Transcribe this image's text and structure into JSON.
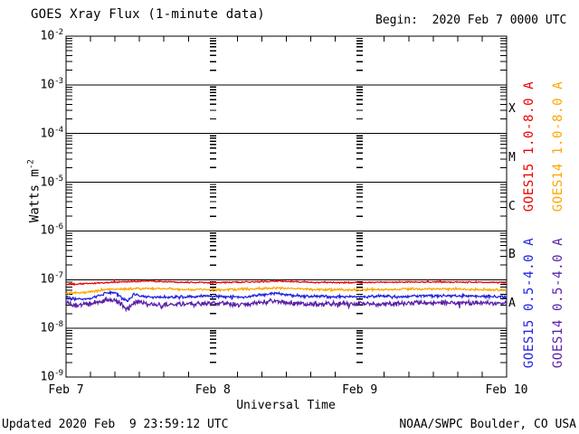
{
  "title": "GOES Xray Flux (1-minute data)",
  "begin_label": "Begin:  2020 Feb 7 0000 UTC",
  "footer": {
    "updated": "Updated 2020 Feb  9 23:59:12 UTC",
    "source": "NOAA/SWPC Boulder, CO USA"
  },
  "chart_data": {
    "type": "line",
    "title": "GOES Xray Flux (1-minute data)",
    "xlabel": "Universal Time",
    "ylabel_text": "Watts m",
    "ylabel_exp": "-2",
    "y_scale": "log10",
    "ylim_log10": [
      -9,
      -2
    ],
    "y_ticks": [
      "-2",
      "-3",
      "-4",
      "-5",
      "-6",
      "-7",
      "-8",
      "-9"
    ],
    "x_range_days": [
      0,
      3
    ],
    "x_ticks": [
      {
        "label": "Feb 7",
        "day": 0
      },
      {
        "label": "Feb 8",
        "day": 1
      },
      {
        "label": "Feb 9",
        "day": 2
      },
      {
        "label": "Feb 10",
        "day": 3
      }
    ],
    "grid": {
      "decade_lines": true,
      "day_dashed_lines_days": [
        1,
        2
      ],
      "color": "#000000"
    },
    "flare_classes": [
      {
        "label": "X",
        "log_center": -3.5
      },
      {
        "label": "M",
        "log_center": -4.5
      },
      {
        "label": "C",
        "log_center": -5.5
      },
      {
        "label": "B",
        "log_center": -6.5
      },
      {
        "label": "A",
        "log_center": -7.5
      }
    ],
    "series": [
      {
        "name": "GOES15 1.0-8.0 A",
        "color": "#ee0000",
        "noise_log10": 0.013,
        "spike_dir": 1,
        "anchors_day_log10flux": [
          [
            0,
            -7.1
          ],
          [
            0.15,
            -7.08
          ],
          [
            0.35,
            -7.05
          ],
          [
            0.55,
            -7.03
          ],
          [
            0.75,
            -7.05
          ],
          [
            1.0,
            -7.06
          ],
          [
            1.25,
            -7.05
          ],
          [
            1.45,
            -7.03
          ],
          [
            1.7,
            -7.06
          ],
          [
            2.0,
            -7.06
          ],
          [
            2.3,
            -7.05
          ],
          [
            2.6,
            -7.05
          ],
          [
            3,
            -7.06
          ]
        ]
      },
      {
        "name": "GOES14 1.0-8.0 A",
        "color": "#ffa500",
        "noise_log10": 0.022,
        "spike_dir": 1,
        "anchors_day_log10flux": [
          [
            0,
            -7.28
          ],
          [
            0.12,
            -7.27
          ],
          [
            0.3,
            -7.2
          ],
          [
            0.55,
            -7.18
          ],
          [
            0.8,
            -7.2
          ],
          [
            1.0,
            -7.21
          ],
          [
            1.3,
            -7.19
          ],
          [
            1.45,
            -7.17
          ],
          [
            1.7,
            -7.2
          ],
          [
            2.0,
            -7.21
          ],
          [
            2.4,
            -7.19
          ],
          [
            2.7,
            -7.2
          ],
          [
            3,
            -7.21
          ]
        ]
      },
      {
        "name": "GOES15 0.5-4.0 A",
        "color": "#2121e0",
        "noise_log10": 0.027,
        "spike_dir": -1,
        "anchors_day_log10flux": [
          [
            0,
            -7.37
          ],
          [
            0.08,
            -7.41
          ],
          [
            0.18,
            -7.38
          ],
          [
            0.27,
            -7.28
          ],
          [
            0.33,
            -7.26
          ],
          [
            0.38,
            -7.38
          ],
          [
            0.42,
            -7.45
          ],
          [
            0.46,
            -7.3
          ],
          [
            0.5,
            -7.34
          ],
          [
            0.6,
            -7.36
          ],
          [
            0.8,
            -7.35
          ],
          [
            1.0,
            -7.34
          ],
          [
            1.2,
            -7.36
          ],
          [
            1.42,
            -7.28
          ],
          [
            1.6,
            -7.34
          ],
          [
            1.9,
            -7.35
          ],
          [
            2.2,
            -7.34
          ],
          [
            2.6,
            -7.33
          ],
          [
            3,
            -7.35
          ]
        ]
      },
      {
        "name": "GOES14 0.5-4.0 A",
        "color": "#5a20a8",
        "noise_log10": 0.05,
        "spike_dir": -1,
        "anchors_day_log10flux": [
          [
            0,
            -7.48
          ],
          [
            0.08,
            -7.53
          ],
          [
            0.18,
            -7.49
          ],
          [
            0.28,
            -7.41
          ],
          [
            0.34,
            -7.44
          ],
          [
            0.42,
            -7.6
          ],
          [
            0.48,
            -7.44
          ],
          [
            0.55,
            -7.5
          ],
          [
            0.7,
            -7.52
          ],
          [
            0.9,
            -7.5
          ],
          [
            1.0,
            -7.49
          ],
          [
            1.2,
            -7.51
          ],
          [
            1.42,
            -7.44
          ],
          [
            1.6,
            -7.5
          ],
          [
            1.9,
            -7.49
          ],
          [
            2.2,
            -7.5
          ],
          [
            2.6,
            -7.47
          ],
          [
            3,
            -7.49
          ]
        ]
      }
    ]
  }
}
